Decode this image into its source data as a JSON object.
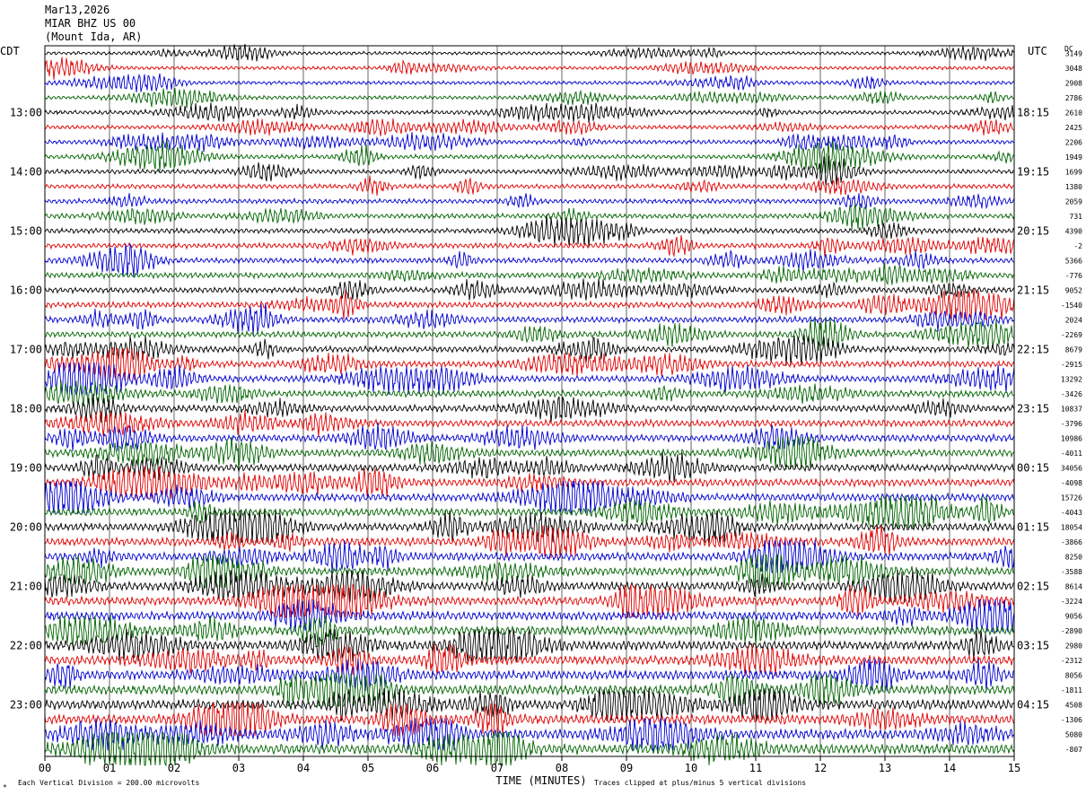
{
  "header": {
    "date": "Mar13,2026",
    "station": "MIAR BHZ US 00",
    "location": "(Mount Ida, AR)"
  },
  "chart_data": {
    "type": "line",
    "left_axis_label": "CDT",
    "right_axis_label": "UTC",
    "right_column_header": "DC",
    "xlabel": "TIME (MINUTES)",
    "x_ticks": [
      "00",
      "01",
      "02",
      "03",
      "04",
      "05",
      "06",
      "07",
      "08",
      "09",
      "10",
      "11",
      "12",
      "13",
      "14",
      "15"
    ],
    "xlim": [
      0,
      15
    ],
    "trace_count": 48,
    "trace_colors": [
      "#000000",
      "#e00000",
      "#0000d0",
      "#006400"
    ],
    "left_time_labels": [
      "13:00",
      "14:00",
      "15:00",
      "16:00",
      "17:00",
      "18:00",
      "19:00",
      "20:00",
      "21:00",
      "22:00",
      "23:00"
    ],
    "right_time_labels": [
      "18:15",
      "19:15",
      "20:15",
      "21:15",
      "22:15",
      "23:15",
      "00:15",
      "01:15",
      "02:15",
      "03:15",
      "04:15"
    ],
    "hour_label_trace_start": 4,
    "hour_label_trace_step": 4,
    "dc_offsets": [
      "3149",
      "3048",
      "2908",
      "2786",
      "2610",
      "2425",
      "2206",
      "1949",
      "1699",
      "1380",
      "2059",
      "731",
      "4390",
      "-2",
      "5366",
      "-776",
      "9052",
      "-1540",
      "2024",
      "-2269",
      "8679",
      "-2915",
      "13292",
      "-3426",
      "10837",
      "-3796",
      "10986",
      "-4011",
      "34056",
      "-4098",
      "15726",
      "-4043",
      "18054",
      "-3866",
      "8250",
      "-3588",
      "8614",
      "-3224",
      "9056",
      "-2890",
      "2980",
      "-2312",
      "8056",
      "-1811",
      "4508",
      "-1306",
      "5080",
      "-807"
    ],
    "footer_left": "Each Vertical Division =  200.00 microvolts",
    "footer_right": "Traces clipped at plus/minus 5 vertical divisions",
    "footer_mark": "*",
    "grid": true
  }
}
